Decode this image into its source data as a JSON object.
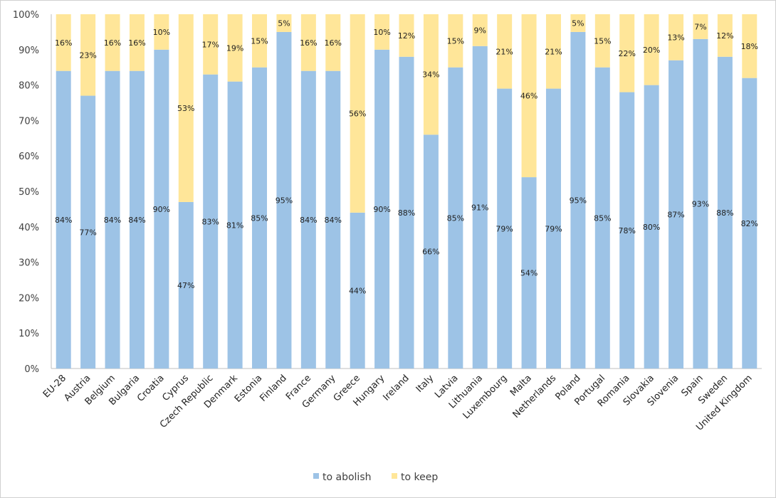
{
  "chart_data": {
    "type": "bar",
    "stacked": true,
    "title": "",
    "xlabel": "",
    "ylabel": "",
    "ylim": [
      0,
      100
    ],
    "yticks": [
      "0%",
      "10%",
      "20%",
      "30%",
      "40%",
      "50%",
      "60%",
      "70%",
      "80%",
      "90%",
      "100%"
    ],
    "categories": [
      "EU-28",
      "Austria",
      "Belgium",
      "Bulgaria",
      "Croatia",
      "Cyprus",
      "Czech Republic",
      "Denmark",
      "Estonia",
      "Finland",
      "France",
      "Germany",
      "Greece",
      "Hungary",
      "Ireland",
      "Italy",
      "Latvia",
      "Lithuania",
      "Luxembourg",
      "Malta",
      "Netherlands",
      "Poland",
      "Portugal",
      "Romania",
      "Slovakia",
      "Slovenia",
      "Spain",
      "Sweden",
      "United Kingdom"
    ],
    "series": [
      {
        "name": "to abolish",
        "color": "#9DC3E6",
        "values": [
          84,
          77,
          84,
          84,
          90,
          47,
          83,
          81,
          85,
          95,
          84,
          84,
          44,
          90,
          88,
          66,
          85,
          91,
          79,
          54,
          79,
          95,
          85,
          78,
          80,
          87,
          93,
          88,
          82
        ]
      },
      {
        "name": "to keep",
        "color": "#FFE699",
        "values": [
          16,
          23,
          16,
          16,
          10,
          53,
          17,
          19,
          15,
          5,
          16,
          16,
          56,
          10,
          12,
          34,
          15,
          9,
          21,
          46,
          21,
          5,
          15,
          22,
          20,
          13,
          7,
          12,
          18
        ]
      }
    ],
    "legend": "bottom",
    "grid": false
  }
}
